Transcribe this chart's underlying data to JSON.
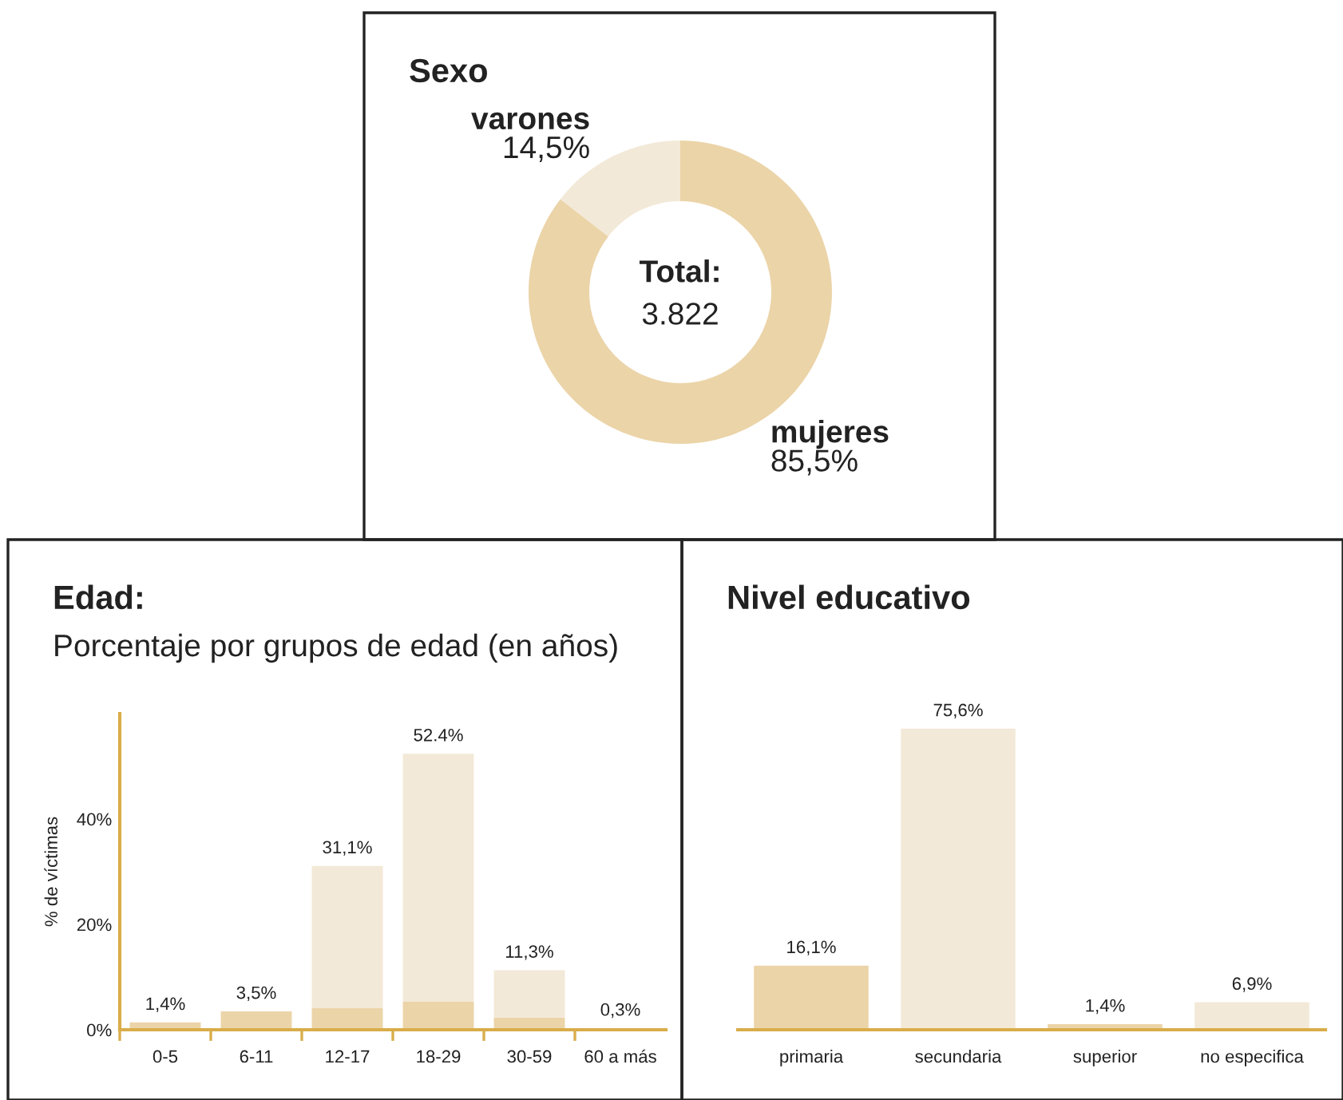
{
  "chart_data": [
    {
      "type": "donut",
      "title": "Sexo",
      "categories": [
        "mujeres",
        "varones"
      ],
      "values": [
        85.5,
        14.5
      ],
      "value_labels": [
        "85,5%",
        "14,5%"
      ],
      "colors": [
        "#ebd4a8",
        "#f3e9d8"
      ],
      "annotations": [
        "Total:",
        "3.822"
      ]
    },
    {
      "type": "bar",
      "title": "Edad:",
      "subtitle": "Porcentaje por grupos de edad (en años)",
      "ylabel": "% de víctimas",
      "categories": [
        "0-5",
        "6-11",
        "12-17",
        "18-29",
        "30-59",
        "60 a más"
      ],
      "stacked": true,
      "series": [
        {
          "color": "#ebd4a8",
          "values": [
            1.4,
            3.5,
            4.1,
            5.3,
            2.3,
            0.3
          ]
        },
        {
          "color": "#f3e9d8",
          "values": [
            0,
            0,
            27.0,
            47.1,
            9.0,
            0
          ]
        }
      ],
      "totals": [
        "1,4%",
        "3,5%",
        "31,1%",
        "52.4%",
        "11,3%",
        "0,3%"
      ],
      "ylim": [
        0,
        60
      ],
      "yticks": [
        {
          "value": 0,
          "label": "0%"
        },
        {
          "value": 20,
          "label": "20%"
        },
        {
          "value": 40,
          "label": "40%"
        }
      ]
    },
    {
      "type": "bar",
      "title": "Nivel educativo",
      "categories": [
        "primaria",
        "secundaria",
        "superior",
        "no especifica"
      ],
      "values": [
        16.1,
        75.6,
        1.4,
        6.9
      ],
      "colors": [
        "#ebd4a8",
        "#f3e9d8",
        "#ebd4a8",
        "#f3e9d8"
      ],
      "value_labels": [
        "16,1%",
        "75,6%",
        "1,4%",
        "6,9%"
      ],
      "tick_labels": "x"
    }
  ]
}
